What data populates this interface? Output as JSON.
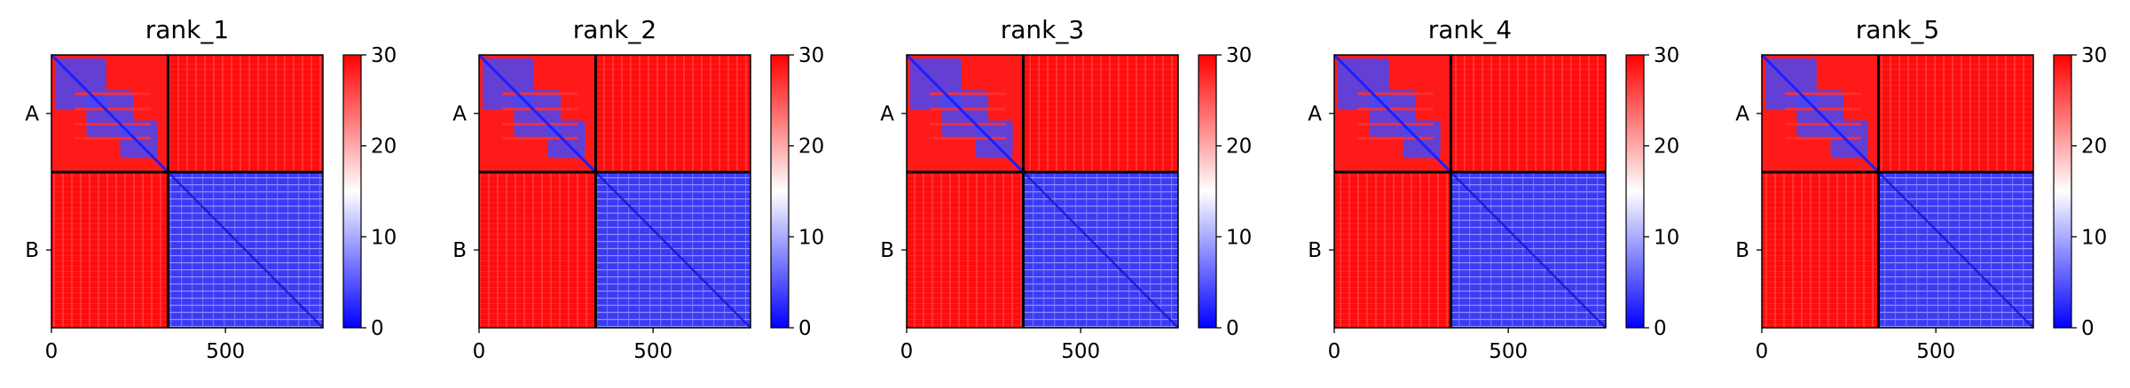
{
  "chart_data": {
    "type": "heatmap",
    "colormap": {
      "low": "#0000ff",
      "mid": "#ffffff",
      "high": "#ff0000"
    },
    "color_range": [
      0,
      30
    ],
    "colorbar_ticks": [
      0,
      10,
      20,
      30
    ],
    "x_ticks": [
      0,
      500
    ],
    "xlim": [
      0,
      780
    ],
    "boundary": 335,
    "row_labels": [
      "A",
      "B"
    ],
    "panels": [
      {
        "title": "rank_1"
      },
      {
        "title": "rank_2"
      },
      {
        "title": "rank_3"
      },
      {
        "title": "rank_4"
      },
      {
        "title": "rank_5"
      }
    ]
  }
}
